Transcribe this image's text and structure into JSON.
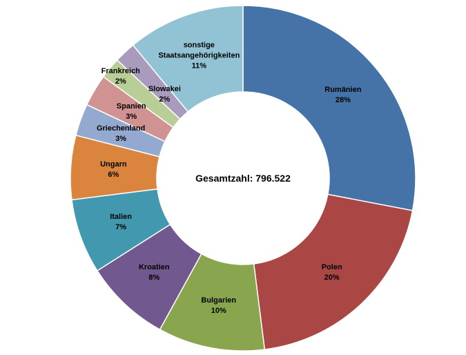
{
  "chart_data": {
    "type": "donut",
    "center_text": "Gesamtzahl: 796.522",
    "categories": [
      "Rumänien",
      "Polen",
      "Bulgarien",
      "Kroatien",
      "Italien",
      "Ungarn",
      "Griechenland",
      "Spanien",
      "Frankreich",
      "Slowakei",
      "sonstige Staatsangehörigkeiten"
    ],
    "values": [
      28,
      20,
      10,
      8,
      7,
      6,
      3,
      3,
      2,
      2,
      11
    ],
    "value_labels": [
      "28%",
      "20%",
      "10%",
      "8%",
      "7%",
      "6%",
      "3%",
      "3%",
      "2%",
      "2%",
      "11%"
    ],
    "colors": [
      "#4572a7",
      "#aa4643",
      "#89a54e",
      "#71588f",
      "#4198af",
      "#db843d",
      "#93a9cf",
      "#d19392",
      "#b9cd96",
      "#a99bbd",
      "#92c3d4"
    ]
  }
}
